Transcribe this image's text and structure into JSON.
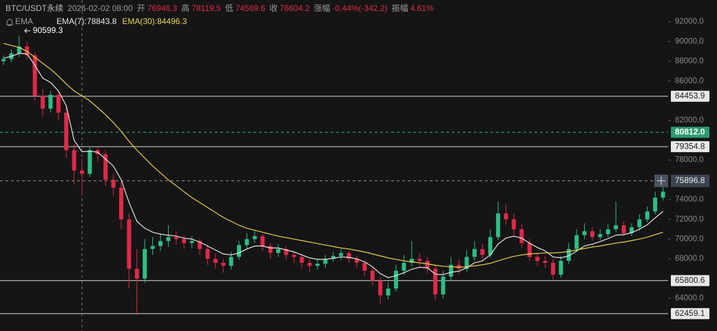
{
  "chart_data": {
    "type": "candlestick",
    "header": {
      "symbol": "BTC/USDT永续",
      "time": "2026-02-02 08:00",
      "items": [
        {
          "label": "开",
          "value": "76946.3"
        },
        {
          "label": "高",
          "value": "78119.5"
        },
        {
          "label": "低",
          "value": "74569.6"
        },
        {
          "label": "收",
          "value": "76604.2"
        },
        {
          "label": "涨幅",
          "value": "-0.44%(-342.2)"
        },
        {
          "label": "振幅",
          "value": "4.61%"
        }
      ]
    },
    "indicator": "EMA",
    "up_color": "#2ebd85",
    "down_color": "#e0294a",
    "ylim": [
      60700,
      94200
    ],
    "yticks": [
      {
        "value": 92000,
        "label": "92000.0"
      },
      {
        "value": 90000,
        "label": "90000.0"
      },
      {
        "value": 88000,
        "label": "88000.0"
      },
      {
        "value": 86000,
        "label": "86000.0"
      },
      {
        "value": 82000,
        "label": "82000.0"
      },
      {
        "value": 78000,
        "label": "78000.0"
      },
      {
        "value": 74000,
        "label": "74000.0"
      },
      {
        "value": 72000,
        "label": "72000.0"
      },
      {
        "value": 70000,
        "label": "70000.0"
      },
      {
        "value": 68000,
        "label": "68000.0"
      },
      {
        "value": 64000,
        "label": "64000.0"
      }
    ],
    "high_marker": 90599.3,
    "price_lines": [
      84453.9,
      79354.8,
      65800.6,
      62459.1
    ],
    "alert_line": {
      "value": 80812,
      "label": "80812.0"
    },
    "current_price": 75896.8,
    "candles": [
      [
        88000,
        88600,
        87600,
        88200
      ],
      [
        88200,
        89200,
        87900,
        88800
      ],
      [
        88800,
        90599.3,
        88400,
        89500
      ],
      [
        89500,
        90000,
        88200,
        88600
      ],
      [
        88600,
        88900,
        84000,
        84500
      ],
      [
        84500,
        85200,
        82400,
        83200
      ],
      [
        83200,
        85000,
        82800,
        84600
      ],
      [
        84600,
        85000,
        82000,
        82800
      ],
      [
        82800,
        83400,
        78200,
        79000
      ],
      [
        79000,
        79600,
        75500,
        76946.3
      ],
      [
        76946.3,
        78119.5,
        74569.6,
        76604.2
      ],
      [
        76604.2,
        79400,
        76300,
        79000
      ],
      [
        79000,
        79300,
        77800,
        78600
      ],
      [
        78600,
        79000,
        75400,
        76000
      ],
      [
        76000,
        76600,
        74400,
        75200
      ],
      [
        75200,
        75800,
        71000,
        72000
      ],
      [
        72000,
        72600,
        65000,
        67000
      ],
      [
        67000,
        69000,
        62300,
        66000
      ],
      [
        66000,
        70000,
        65600,
        69000
      ],
      [
        69000,
        70200,
        68400,
        69300
      ],
      [
        69300,
        70600,
        68800,
        69800
      ],
      [
        69800,
        71400,
        69200,
        70200
      ],
      [
        70200,
        70800,
        69400,
        70000
      ],
      [
        70000,
        70400,
        69000,
        69600
      ],
      [
        69600,
        70300,
        69100,
        69800
      ],
      [
        69800,
        70000,
        68400,
        69000
      ],
      [
        69000,
        69400,
        67400,
        68000
      ],
      [
        68000,
        68500,
        67000,
        67600
      ],
      [
        67600,
        68000,
        66600,
        67300
      ],
      [
        67300,
        68700,
        66900,
        68200
      ],
      [
        68200,
        69800,
        67900,
        69400
      ],
      [
        69400,
        70600,
        69000,
        70000
      ],
      [
        70000,
        70900,
        69600,
        70300
      ],
      [
        70300,
        70500,
        68800,
        69300
      ],
      [
        69300,
        69600,
        68000,
        68600
      ],
      [
        68600,
        69500,
        68200,
        69000
      ],
      [
        69000,
        69300,
        67900,
        68400
      ],
      [
        68400,
        68800,
        67600,
        68200
      ],
      [
        68200,
        68500,
        67000,
        67600
      ],
      [
        67600,
        67900,
        66700,
        67300
      ],
      [
        67300,
        68000,
        66900,
        67500
      ],
      [
        67500,
        68400,
        67100,
        68000
      ],
      [
        68000,
        68700,
        67700,
        68300
      ],
      [
        68300,
        69000,
        67900,
        68600
      ],
      [
        68600,
        68800,
        67600,
        68000
      ],
      [
        68000,
        68300,
        67100,
        67600
      ],
      [
        67600,
        67900,
        66300,
        66800
      ],
      [
        66800,
        67200,
        65300,
        65800
      ],
      [
        65800,
        66200,
        63500,
        64300
      ],
      [
        64300,
        65600,
        63900,
        65000
      ],
      [
        65000,
        67400,
        64700,
        66800
      ],
      [
        66800,
        68400,
        66400,
        67600
      ],
      [
        67600,
        69800,
        67200,
        68000
      ],
      [
        68000,
        68600,
        67300,
        67800
      ],
      [
        67800,
        68200,
        66500,
        67000
      ],
      [
        67000,
        67400,
        63800,
        64400
      ],
      [
        64400,
        66800,
        64000,
        66200
      ],
      [
        66200,
        68200,
        65800,
        67400
      ],
      [
        67400,
        67900,
        66400,
        67000
      ],
      [
        67000,
        68900,
        66700,
        68200
      ],
      [
        68200,
        69800,
        67800,
        69000
      ],
      [
        69000,
        69500,
        67900,
        68400
      ],
      [
        68400,
        71000,
        68100,
        70200
      ],
      [
        70200,
        73800,
        69900,
        72600
      ],
      [
        72600,
        73500,
        71400,
        72000
      ],
      [
        72000,
        72600,
        70400,
        71000
      ],
      [
        71000,
        71500,
        69100,
        69600
      ],
      [
        69600,
        70000,
        67800,
        68200
      ],
      [
        68200,
        68600,
        67300,
        67800
      ],
      [
        67800,
        68300,
        67100,
        67600
      ],
      [
        67600,
        68000,
        65900,
        66400
      ],
      [
        66400,
        68300,
        66100,
        67800
      ],
      [
        67800,
        69600,
        67500,
        69000
      ],
      [
        69000,
        71000,
        68700,
        70400
      ],
      [
        70400,
        71600,
        70000,
        70800
      ],
      [
        70800,
        71200,
        69800,
        70200
      ],
      [
        70200,
        71000,
        69900,
        70500
      ],
      [
        70500,
        71600,
        70200,
        71000
      ],
      [
        71000,
        73800,
        70700,
        71400
      ],
      [
        71400,
        71800,
        70300,
        70600
      ],
      [
        70600,
        71600,
        70300,
        71200
      ],
      [
        71200,
        72500,
        70900,
        72000
      ],
      [
        72000,
        73300,
        71700,
        72800
      ],
      [
        72800,
        74800,
        72500,
        74200
      ],
      [
        74200,
        75500,
        73900,
        74800
      ]
    ],
    "series": [
      {
        "name": "EMA(7):",
        "color": "#e6e6e6",
        "values": [
          88300,
          88500,
          88800,
          88750,
          87600,
          86300,
          85850,
          85000,
          83500,
          80000,
          78843.8,
          78900,
          78800,
          78100,
          77400,
          76000,
          73700,
          71800,
          71100,
          70700,
          70500,
          70400,
          70300,
          70100,
          70000,
          69700,
          69300,
          68900,
          68500,
          68400,
          68600,
          69000,
          69300,
          69300,
          69100,
          69100,
          68900,
          68700,
          68400,
          68100,
          67950,
          67950,
          68050,
          68200,
          68150,
          68000,
          67700,
          67200,
          66500,
          66100,
          66300,
          66600,
          66950,
          67150,
          67100,
          66450,
          66400,
          66650,
          66750,
          67100,
          67600,
          67800,
          68400,
          69500,
          70100,
          70300,
          70100,
          69600,
          69150,
          68800,
          68200,
          68100,
          68300,
          68800,
          69300,
          69500,
          69750,
          70050,
          70400,
          70450,
          70650,
          71000,
          71450,
          72150,
          72800
        ]
      },
      {
        "name": "EMA(30):",
        "color": "#e8d44d",
        "values": [
          89800,
          89600,
          89400,
          89000,
          88400,
          87800,
          87200,
          86500,
          85700,
          85000,
          84496.3,
          84000,
          83300,
          82600,
          81800,
          80900,
          79900,
          79000,
          78200,
          77400,
          76700,
          76000,
          75400,
          74800,
          74200,
          73700,
          73200,
          72700,
          72200,
          71800,
          71400,
          71100,
          70900,
          70700,
          70500,
          70300,
          70150,
          70000,
          69850,
          69700,
          69550,
          69400,
          69250,
          69100,
          69000,
          68850,
          68700,
          68500,
          68300,
          68100,
          67950,
          67800,
          67700,
          67600,
          67500,
          67350,
          67250,
          67200,
          67150,
          67200,
          67300,
          67400,
          67550,
          67800,
          68050,
          68250,
          68400,
          68500,
          68550,
          68600,
          68600,
          68650,
          68750,
          68900,
          69050,
          69200,
          69300,
          69450,
          69600,
          69700,
          69850,
          70000,
          70200,
          70450,
          70700
        ]
      }
    ]
  }
}
